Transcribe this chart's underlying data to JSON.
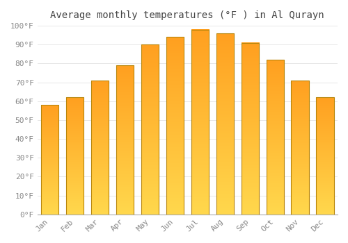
{
  "title": "Average monthly temperatures (°F ) in Al Qurayn",
  "months": [
    "Jan",
    "Feb",
    "Mar",
    "Apr",
    "May",
    "Jun",
    "Jul",
    "Aug",
    "Sep",
    "Oct",
    "Nov",
    "Dec"
  ],
  "values": [
    58,
    62,
    71,
    79,
    90,
    94,
    98,
    96,
    91,
    82,
    71,
    62
  ],
  "bar_color_light": "#FFD84D",
  "bar_color_dark": "#FFA020",
  "bar_edge_color": "#B8860B",
  "ylim": [
    0,
    100
  ],
  "yticks": [
    0,
    10,
    20,
    30,
    40,
    50,
    60,
    70,
    80,
    90,
    100
  ],
  "ytick_labels": [
    "0°F",
    "10°F",
    "20°F",
    "30°F",
    "40°F",
    "50°F",
    "60°F",
    "70°F",
    "80°F",
    "90°F",
    "100°F"
  ],
  "title_fontsize": 10,
  "tick_fontsize": 8,
  "background_color": "#FFFFFF",
  "grid_color": "#DDDDDD",
  "bar_edge_width": 0.8
}
